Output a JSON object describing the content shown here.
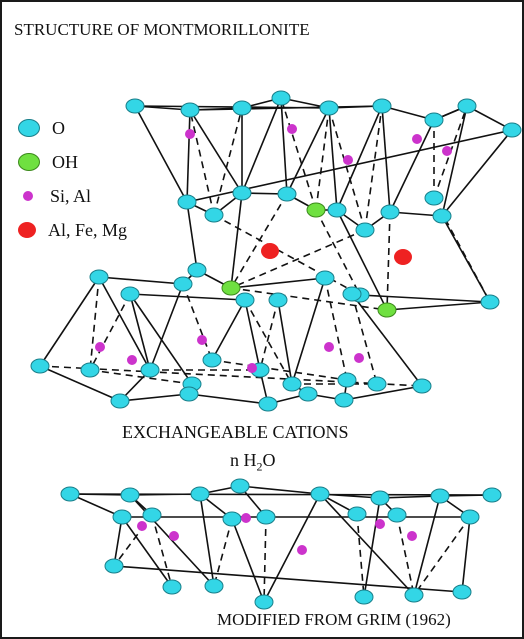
{
  "title": "STRUCTURE OF MONTMORILLONITE",
  "legend": [
    {
      "label": "O",
      "color": "#33d6e6",
      "kind": "oxygen"
    },
    {
      "label": "OH",
      "color": "#6fe040",
      "kind": "hydroxyl"
    },
    {
      "label": "Si, Al",
      "color": "#cc33cc",
      "kind": "tetrahedral-cation"
    },
    {
      "label": "Al, Fe, Mg",
      "color": "#ee2222",
      "kind": "octahedral-cation"
    }
  ],
  "interlayer": {
    "label": "EXCHANGEABLE CATIONS",
    "water_prefix": "n H",
    "water_subscript": "2",
    "water_suffix": "O"
  },
  "credit": "MODIFIED FROM GRIM (1962)",
  "colors": {
    "frame": "#1a1a1a",
    "bond": "#111111",
    "oxygen_stroke": "#1a7f8a"
  }
}
